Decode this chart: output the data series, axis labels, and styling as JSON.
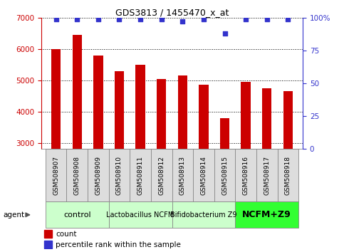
{
  "title": "GDS3813 / 1455470_x_at",
  "samples": [
    "GSM508907",
    "GSM508908",
    "GSM508909",
    "GSM508910",
    "GSM508911",
    "GSM508912",
    "GSM508913",
    "GSM508914",
    "GSM508915",
    "GSM508916",
    "GSM508917",
    "GSM508918"
  ],
  "counts": [
    6000,
    6450,
    5800,
    5300,
    5500,
    5050,
    5150,
    4850,
    3780,
    4950,
    4750,
    4650
  ],
  "percentiles": [
    99,
    99,
    99,
    99,
    99,
    99,
    97,
    99,
    88,
    99,
    99,
    99
  ],
  "bar_color": "#cc0000",
  "dot_color": "#3333cc",
  "ylim": [
    2800,
    7000
  ],
  "yticks": [
    3000,
    4000,
    5000,
    6000,
    7000
  ],
  "right_yticks": [
    0,
    25,
    50,
    75,
    100
  ],
  "right_ylim": [
    -12.5,
    112.5
  ],
  "groups": [
    {
      "label": "control",
      "start": 0,
      "end": 3,
      "color": "#ccffcc",
      "border": "#888888",
      "fontsize": 8,
      "bold": false
    },
    {
      "label": "Lactobacillus NCFM",
      "start": 3,
      "end": 6,
      "color": "#ccffcc",
      "border": "#888888",
      "fontsize": 7,
      "bold": false
    },
    {
      "label": "Bifidobacterium Z9",
      "start": 6,
      "end": 9,
      "color": "#ccffcc",
      "border": "#888888",
      "fontsize": 7,
      "bold": false
    },
    {
      "label": "NCFM+Z9",
      "start": 9,
      "end": 12,
      "color": "#33ff33",
      "border": "#888888",
      "fontsize": 9,
      "bold": true
    }
  ],
  "legend_count_color": "#cc0000",
  "legend_pct_color": "#3333cc",
  "bar_width": 0.45
}
